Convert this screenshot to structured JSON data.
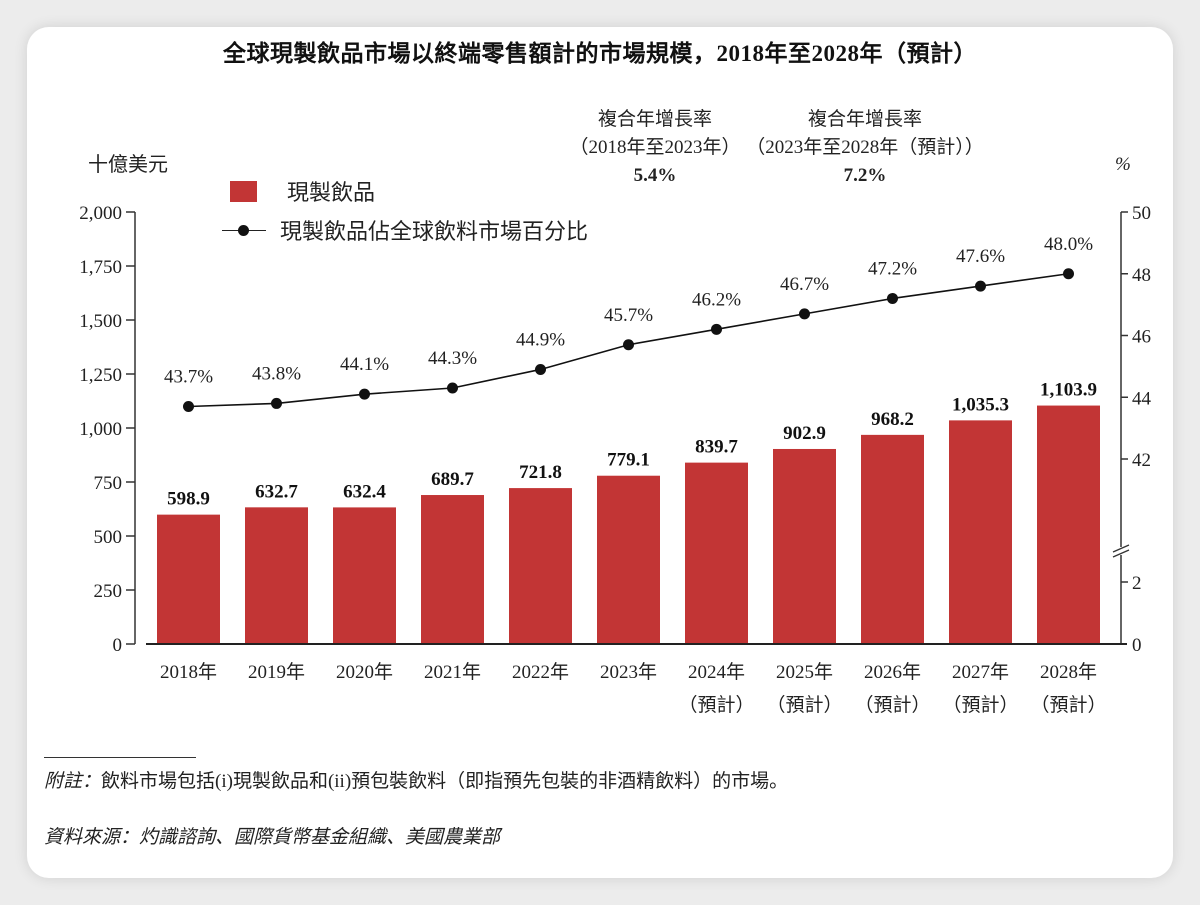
{
  "chart_data": {
    "type": "bar",
    "title": "全球現製飲品市場以終端零售額計的市場規模，2018年至2028年（預計）",
    "categories": [
      {
        "year": "2018年",
        "note": ""
      },
      {
        "year": "2019年",
        "note": ""
      },
      {
        "year": "2020年",
        "note": ""
      },
      {
        "year": "2021年",
        "note": ""
      },
      {
        "year": "2022年",
        "note": ""
      },
      {
        "year": "2023年",
        "note": ""
      },
      {
        "year": "2024年",
        "note": "（預計）"
      },
      {
        "year": "2025年",
        "note": "（預計）"
      },
      {
        "year": "2026年",
        "note": "（預計）"
      },
      {
        "year": "2027年",
        "note": "（預計）"
      },
      {
        "year": "2028年",
        "note": "（預計）"
      }
    ],
    "series": [
      {
        "name": "現製飲品",
        "type": "bar",
        "axis": "left",
        "color": "#c23535",
        "values": [
          598.9,
          632.7,
          632.4,
          689.7,
          721.8,
          779.1,
          839.7,
          902.9,
          968.2,
          1035.3,
          1103.9
        ],
        "labels": [
          "598.9",
          "632.7",
          "632.4",
          "689.7",
          "721.8",
          "779.1",
          "839.7",
          "902.9",
          "968.2",
          "1,035.3",
          "1,103.9"
        ]
      },
      {
        "name": "現製飲品佔全球飲料市場百分比",
        "type": "line",
        "axis": "right",
        "color": "#111111",
        "values": [
          43.7,
          43.8,
          44.1,
          44.3,
          44.9,
          45.7,
          46.2,
          46.7,
          47.2,
          47.6,
          48.0
        ],
        "labels": [
          "43.7%",
          "43.8%",
          "44.1%",
          "44.3%",
          "44.9%",
          "45.7%",
          "46.2%",
          "46.7%",
          "47.2%",
          "47.6%",
          "48.0%"
        ]
      }
    ],
    "ylabel": "十億美元",
    "ylim": [
      0,
      2000
    ],
    "yticks": [
      "2,000",
      "1,750",
      "1,500",
      "1,250",
      "1,000",
      "750",
      "500",
      "250",
      "0"
    ],
    "yticks_values": [
      2000,
      1750,
      1500,
      1250,
      1000,
      750,
      500,
      250,
      0
    ],
    "y2label": "%",
    "y2lim": [
      0,
      50
    ],
    "y2_axis_break": true,
    "y2ticks_upper": [
      "50",
      "48",
      "46",
      "44",
      "42"
    ],
    "y2ticks_upper_values": [
      50,
      48,
      46,
      44,
      42
    ],
    "y2ticks_lower": [
      "2",
      "0"
    ],
    "y2ticks_lower_values": [
      2,
      0
    ],
    "grid": false,
    "legend_position": "top-left"
  },
  "cagr": [
    {
      "label": "複合年增長率",
      "period": "（2018年至2023年）",
      "value": "5.4%"
    },
    {
      "label": "複合年增長率",
      "period": "（2023年至2028年（預計））",
      "value": "7.2%"
    }
  ],
  "footnote": {
    "note_label": "附註：",
    "note_text": "飲料市場包括(i)現製飲品和(ii)預包裝飲料（即指預先包裝的非酒精飲料）的市場。",
    "source": "資料來源：灼識諮詢、國際貨幣基金組織、美國農業部"
  }
}
